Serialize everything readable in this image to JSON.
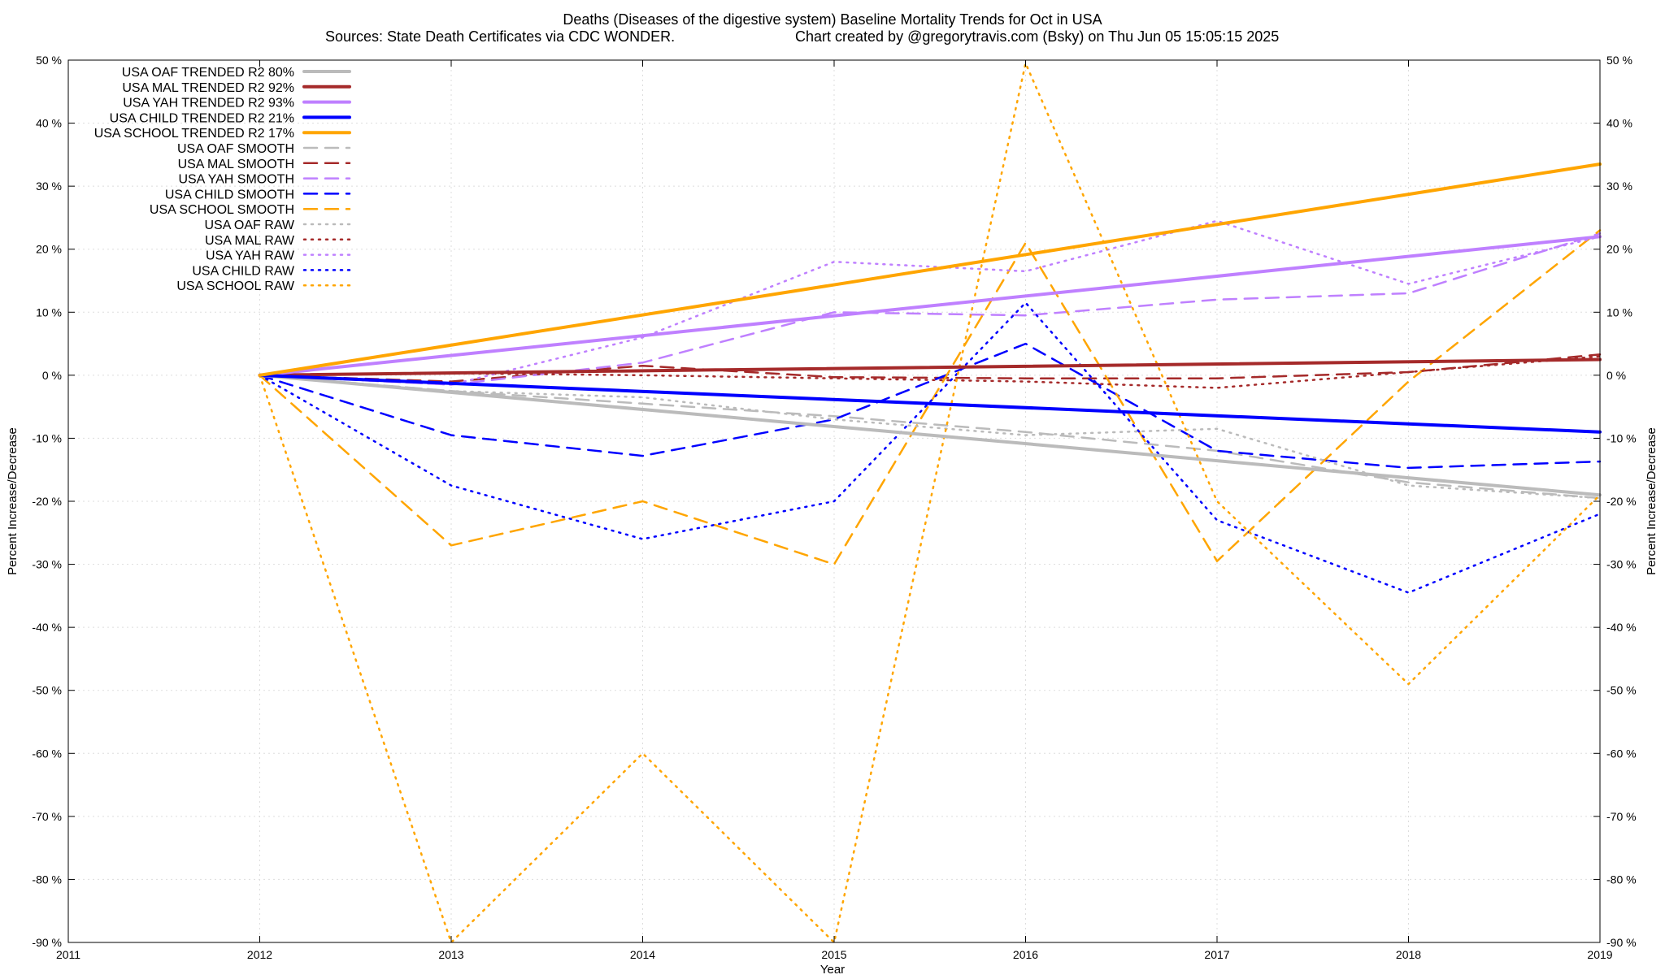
{
  "chart_data": {
    "type": "line",
    "title": "Deaths (Diseases of the digestive system)  Baseline Mortality Trends for Oct in USA",
    "subtitle_left": "Sources: State Death Certificates via CDC WONDER.",
    "subtitle_right": "Chart created by @gregorytravis.com (Bsky) on Thu Jun 05 15:05:15 2025",
    "xlabel": "Year",
    "ylabel": "Percent Increase/Decrease",
    "y2label": "Percent Increase/Decrease",
    "xlim": [
      2011,
      2019
    ],
    "ylim": [
      -90,
      50
    ],
    "x_ticks": [
      "2011",
      "2012",
      "2013",
      "2014",
      "2015",
      "2016",
      "2017",
      "2018",
      "2019"
    ],
    "y_ticks": [
      "50 %",
      "40 %",
      "30 %",
      "20 %",
      "10 %",
      "0 %",
      "-10 %",
      "-20 %",
      "-30 %",
      "-40 %",
      "-50 %",
      "-60 %",
      "-70 %",
      "-80 %",
      "-90 %"
    ],
    "grid": true,
    "legend_position": "top-left",
    "series": [
      {
        "name": "USA OAF TRENDED R2  80%",
        "color": "#bbbbbb",
        "style": "solid",
        "width": 4,
        "x": [
          2012,
          2019
        ],
        "values": [
          0,
          -19
        ]
      },
      {
        "name": "USA MAL TRENDED R2  92%",
        "color": "#a52a2a",
        "style": "solid",
        "width": 4,
        "x": [
          2012,
          2019
        ],
        "values": [
          0,
          2.5
        ]
      },
      {
        "name": "USA YAH TRENDED R2  93%",
        "color": "#bf80ff",
        "style": "solid",
        "width": 4,
        "x": [
          2012,
          2019
        ],
        "values": [
          0,
          22
        ]
      },
      {
        "name": "USA CHILD TRENDED R2  21%",
        "color": "#0000ff",
        "style": "solid",
        "width": 4,
        "x": [
          2012,
          2019
        ],
        "values": [
          0,
          -9
        ]
      },
      {
        "name": "USA SCHOOL TRENDED R2  17%",
        "color": "#ffa500",
        "style": "solid",
        "width": 4,
        "x": [
          2012,
          2019
        ],
        "values": [
          0,
          33.5
        ]
      },
      {
        "name": "USA OAF SMOOTH",
        "color": "#bbbbbb",
        "style": "dashed",
        "width": 2.5,
        "x": [
          2012,
          2013,
          2014,
          2015,
          2016,
          2017,
          2018,
          2019
        ],
        "values": [
          0,
          -2.5,
          -4.5,
          -6.5,
          -9,
          -12,
          -17,
          -19.5
        ]
      },
      {
        "name": "USA MAL SMOOTH",
        "color": "#a52a2a",
        "style": "dashed",
        "width": 2.5,
        "x": [
          2012,
          2013,
          2014,
          2015,
          2016,
          2017,
          2018,
          2019
        ],
        "values": [
          0,
          -1,
          1.5,
          -0.3,
          -0.5,
          -0.5,
          0.5,
          3.3
        ]
      },
      {
        "name": "USA YAH SMOOTH",
        "color": "#bf80ff",
        "style": "dashed",
        "width": 2.5,
        "x": [
          2012,
          2013,
          2014,
          2015,
          2016,
          2017,
          2018,
          2019
        ],
        "values": [
          0,
          -1.5,
          2,
          10,
          9.5,
          12,
          13,
          22.5
        ]
      },
      {
        "name": "USA CHILD SMOOTH",
        "color": "#0000ff",
        "style": "dashed",
        "width": 2.5,
        "x": [
          2012,
          2013,
          2014,
          2015,
          2016,
          2017,
          2018,
          2019
        ],
        "values": [
          0,
          -9.5,
          -12.8,
          -7,
          5,
          -12,
          -14.7,
          -13.7
        ]
      },
      {
        "name": "USA SCHOOL SMOOTH",
        "color": "#ffa500",
        "style": "dashed",
        "width": 2.5,
        "x": [
          2012,
          2013,
          2014,
          2015,
          2016,
          2017,
          2018,
          2019
        ],
        "values": [
          0,
          -27,
          -20,
          -30,
          21,
          -29.5,
          -1,
          23
        ]
      },
      {
        "name": "USA OAF RAW",
        "color": "#bbbbbb",
        "style": "dotted",
        "width": 2.5,
        "x": [
          2012,
          2013,
          2014,
          2015,
          2016,
          2017,
          2018,
          2019
        ],
        "values": [
          0,
          -2.5,
          -3.5,
          -7,
          -9.5,
          -8.5,
          -17.5,
          -19.5
        ]
      },
      {
        "name": "USA MAL RAW",
        "color": "#a52a2a",
        "style": "dotted",
        "width": 2.5,
        "x": [
          2012,
          2013,
          2014,
          2015,
          2016,
          2017,
          2018,
          2019
        ],
        "values": [
          0,
          0.3,
          0,
          -0.5,
          -1,
          -2,
          0.5,
          3
        ]
      },
      {
        "name": "USA YAH RAW",
        "color": "#bf80ff",
        "style": "dotted",
        "width": 2.5,
        "x": [
          2012,
          2013,
          2014,
          2015,
          2016,
          2017,
          2018,
          2019
        ],
        "values": [
          0,
          -1.5,
          6,
          18,
          16.5,
          24.5,
          14.5,
          22
        ]
      },
      {
        "name": "USA CHILD RAW",
        "color": "#0000ff",
        "style": "dotted",
        "width": 2.5,
        "x": [
          2012,
          2013,
          2014,
          2015,
          2016,
          2017,
          2018,
          2019
        ],
        "values": [
          0,
          -17.5,
          -26,
          -20,
          11.5,
          -23,
          -34.5,
          -22
        ]
      },
      {
        "name": "USA SCHOOL RAW",
        "color": "#ffa500",
        "style": "dotted",
        "width": 2.5,
        "x": [
          2012,
          2013,
          2014,
          2015,
          2016,
          2017,
          2018,
          2019
        ],
        "values": [
          0,
          -90,
          -60,
          -90,
          49.5,
          -20,
          -49,
          -19
        ]
      }
    ]
  }
}
